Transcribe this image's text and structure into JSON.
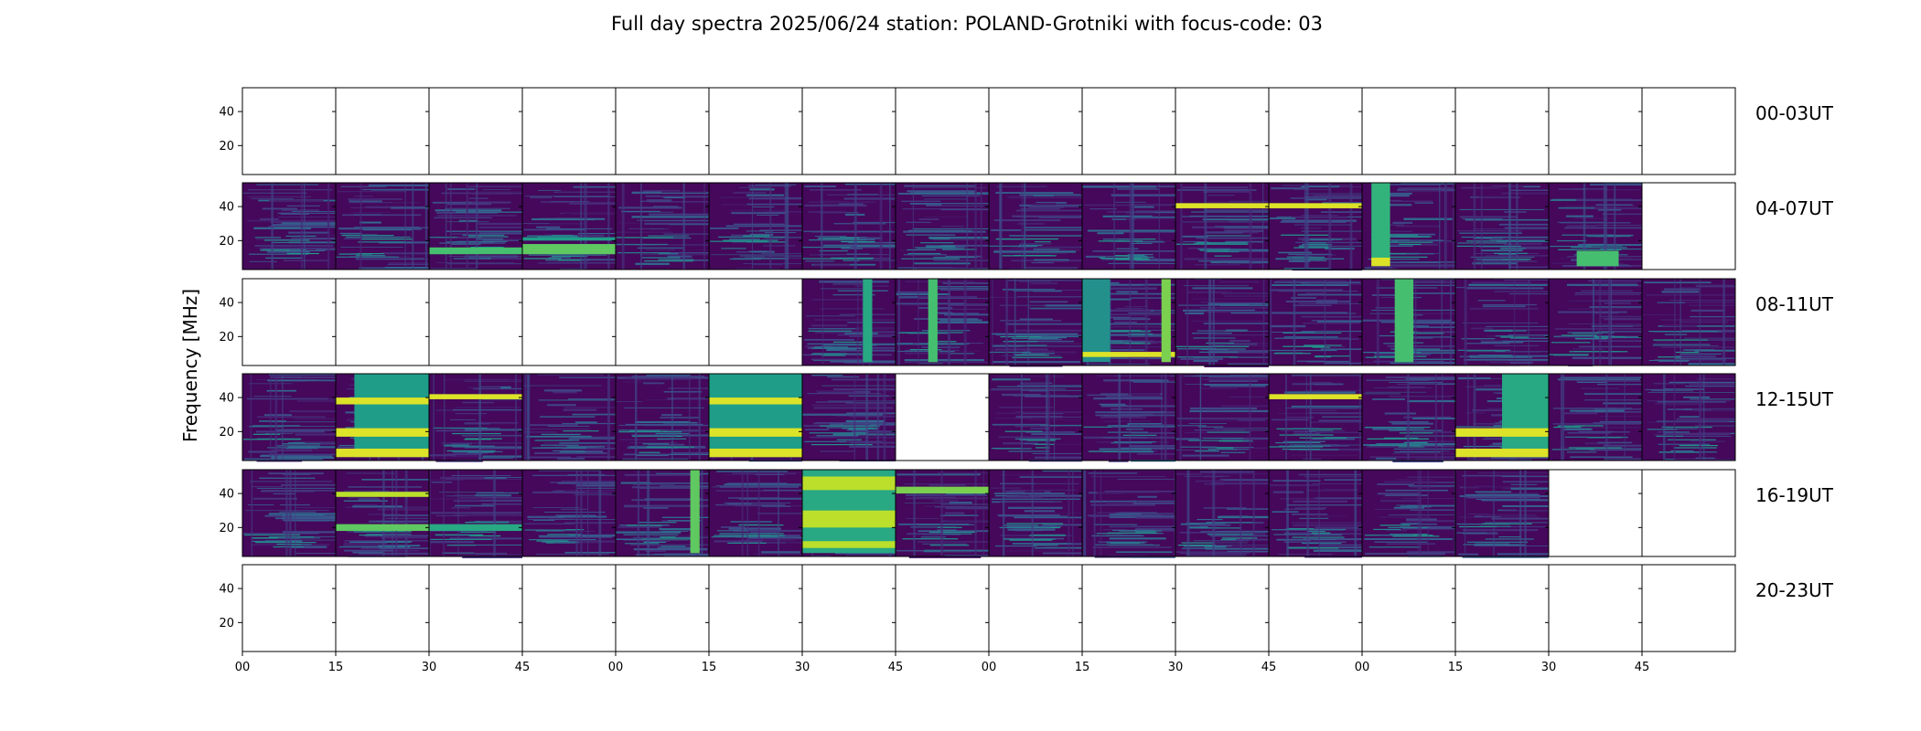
{
  "chart_data": {
    "type": "heatmap",
    "title": "Full day spectra 2025/06/24 station: POLAND-Grotniki with focus-code: 03",
    "ylabel": "Frequency [MHz]",
    "xlabel": "",
    "colormap": "viridis",
    "colors": {
      "background": "#440154",
      "low": "#46307e",
      "mid": "#2c728e",
      "high": "#21a685",
      "peak": "#fde725",
      "empty": "#ffffff"
    },
    "ylim": [
      3,
      54
    ],
    "yticks": [
      20,
      40
    ],
    "row_yticks": [
      [
        20,
        40
      ],
      [
        20,
        40
      ],
      [
        20,
        40
      ],
      [
        20,
        40
      ],
      [
        20,
        40
      ],
      [
        20,
        40
      ]
    ],
    "x_tick_labels": [
      "00",
      "15",
      "30",
      "45",
      "00",
      "15",
      "30",
      "45",
      "00",
      "15",
      "30",
      "45",
      "00",
      "15",
      "30",
      "45"
    ],
    "panels_per_row": 16,
    "panel_minutes": 15,
    "grid": false,
    "rows": [
      {
        "label": "00-03UT",
        "data": [
          0,
          0,
          0,
          0,
          0,
          0,
          0,
          0,
          0,
          0,
          0,
          0,
          0,
          0,
          0,
          0
        ]
      },
      {
        "label": "04-07UT",
        "data": [
          1,
          1,
          1,
          1,
          1,
          1,
          1,
          1,
          1,
          1,
          1,
          1,
          1,
          1,
          1,
          0
        ]
      },
      {
        "label": "08-11UT",
        "data": [
          0,
          0,
          0,
          0,
          0,
          0,
          1,
          1,
          1,
          1,
          1,
          1,
          1,
          1,
          1,
          1
        ]
      },
      {
        "label": "12-15UT",
        "data": [
          1,
          1,
          1,
          1,
          1,
          1,
          1,
          0,
          1,
          1,
          1,
          1,
          1,
          1,
          1,
          1
        ]
      },
      {
        "label": "16-19UT",
        "data": [
          1,
          1,
          1,
          1,
          1,
          1,
          1,
          1,
          1,
          1,
          1,
          1,
          1,
          1,
          0,
          0
        ]
      },
      {
        "label": "20-23UT",
        "data": [
          0,
          0,
          0,
          0,
          0,
          0,
          0,
          0,
          0,
          0,
          0,
          0,
          0,
          0,
          0,
          0
        ]
      }
    ],
    "features": [
      {
        "row": 1,
        "panel": 2,
        "kind": "band",
        "f": [
          12,
          16
        ],
        "intensity": 0.7
      },
      {
        "row": 1,
        "panel": 3,
        "kind": "band",
        "f": [
          12,
          18
        ],
        "intensity": 0.75
      },
      {
        "row": 1,
        "panel": 3,
        "kind": "band",
        "f": [
          20,
          22
        ],
        "intensity": 0.55
      },
      {
        "row": 1,
        "panel": 10,
        "kind": "band",
        "f": [
          39,
          42
        ],
        "intensity": 0.95
      },
      {
        "row": 1,
        "panel": 11,
        "kind": "band",
        "f": [
          39,
          42
        ],
        "intensity": 0.95
      },
      {
        "row": 1,
        "panel": 12,
        "kind": "burst",
        "t": [
          0.1,
          0.3
        ],
        "f": [
          5,
          54
        ],
        "intensity": 0.65
      },
      {
        "row": 1,
        "panel": 12,
        "kind": "burst",
        "t": [
          0.1,
          0.3
        ],
        "f": [
          5,
          10
        ],
        "intensity": 0.95
      },
      {
        "row": 1,
        "panel": 14,
        "kind": "burst",
        "t": [
          0.3,
          0.75
        ],
        "f": [
          5,
          14
        ],
        "intensity": 0.7
      },
      {
        "row": 2,
        "panel": 6,
        "kind": "burst",
        "t": [
          0.65,
          0.75
        ],
        "f": [
          5,
          54
        ],
        "intensity": 0.6
      },
      {
        "row": 2,
        "panel": 7,
        "kind": "burst",
        "t": [
          0.35,
          0.45
        ],
        "f": [
          5,
          54
        ],
        "intensity": 0.7
      },
      {
        "row": 2,
        "panel": 9,
        "kind": "burst",
        "t": [
          0.0,
          0.3
        ],
        "f": [
          5,
          54
        ],
        "intensity": 0.5
      },
      {
        "row": 2,
        "panel": 9,
        "kind": "band",
        "f": [
          8,
          11
        ],
        "intensity": 0.95
      },
      {
        "row": 2,
        "panel": 9,
        "kind": "burst",
        "t": [
          0.85,
          0.95
        ],
        "f": [
          5,
          54
        ],
        "intensity": 0.8
      },
      {
        "row": 2,
        "panel": 12,
        "kind": "burst",
        "t": [
          0.35,
          0.55
        ],
        "f": [
          5,
          54
        ],
        "intensity": 0.7
      },
      {
        "row": 3,
        "panel": 1,
        "kind": "burst",
        "t": [
          0.2,
          1.0
        ],
        "f": [
          5,
          54
        ],
        "intensity": 0.55
      },
      {
        "row": 3,
        "panel": 1,
        "kind": "band",
        "f": [
          36,
          40
        ],
        "intensity": 0.95
      },
      {
        "row": 3,
        "panel": 1,
        "kind": "band",
        "f": [
          17,
          22
        ],
        "intensity": 0.95
      },
      {
        "row": 3,
        "panel": 1,
        "kind": "band",
        "f": [
          5,
          10
        ],
        "intensity": 0.95
      },
      {
        "row": 3,
        "panel": 2,
        "kind": "band",
        "f": [
          39,
          42
        ],
        "intensity": 0.95
      },
      {
        "row": 3,
        "panel": 5,
        "kind": "burst",
        "t": [
          0.0,
          1.0
        ],
        "f": [
          5,
          54
        ],
        "intensity": 0.55
      },
      {
        "row": 3,
        "panel": 5,
        "kind": "band",
        "f": [
          36,
          40
        ],
        "intensity": 0.95
      },
      {
        "row": 3,
        "panel": 5,
        "kind": "band",
        "f": [
          17,
          22
        ],
        "intensity": 0.95
      },
      {
        "row": 3,
        "panel": 5,
        "kind": "band",
        "f": [
          5,
          10
        ],
        "intensity": 0.95
      },
      {
        "row": 3,
        "panel": 11,
        "kind": "band",
        "f": [
          39,
          42
        ],
        "intensity": 0.95
      },
      {
        "row": 3,
        "panel": 13,
        "kind": "burst",
        "t": [
          0.5,
          1.0
        ],
        "f": [
          5,
          54
        ],
        "intensity": 0.6
      },
      {
        "row": 3,
        "panel": 13,
        "kind": "band",
        "f": [
          17,
          22
        ],
        "intensity": 0.95
      },
      {
        "row": 3,
        "panel": 13,
        "kind": "band",
        "f": [
          5,
          10
        ],
        "intensity": 0.95
      },
      {
        "row": 4,
        "panel": 1,
        "kind": "band",
        "f": [
          18,
          22
        ],
        "intensity": 0.75
      },
      {
        "row": 4,
        "panel": 1,
        "kind": "band",
        "f": [
          38,
          41
        ],
        "intensity": 0.9
      },
      {
        "row": 4,
        "panel": 2,
        "kind": "band",
        "f": [
          18,
          22
        ],
        "intensity": 0.6
      },
      {
        "row": 4,
        "panel": 4,
        "kind": "burst",
        "t": [
          0.8,
          0.9
        ],
        "f": [
          5,
          54
        ],
        "intensity": 0.75
      },
      {
        "row": 4,
        "panel": 6,
        "kind": "burst",
        "t": [
          0.0,
          1.0
        ],
        "f": [
          5,
          54
        ],
        "intensity": 0.6
      },
      {
        "row": 4,
        "panel": 6,
        "kind": "band",
        "f": [
          42,
          50
        ],
        "intensity": 0.9
      },
      {
        "row": 4,
        "panel": 6,
        "kind": "band",
        "f": [
          20,
          30
        ],
        "intensity": 0.9
      },
      {
        "row": 4,
        "panel": 6,
        "kind": "band",
        "f": [
          8,
          12
        ],
        "intensity": 0.9
      },
      {
        "row": 4,
        "panel": 7,
        "kind": "band",
        "f": [
          40,
          44
        ],
        "intensity": 0.8
      }
    ]
  }
}
